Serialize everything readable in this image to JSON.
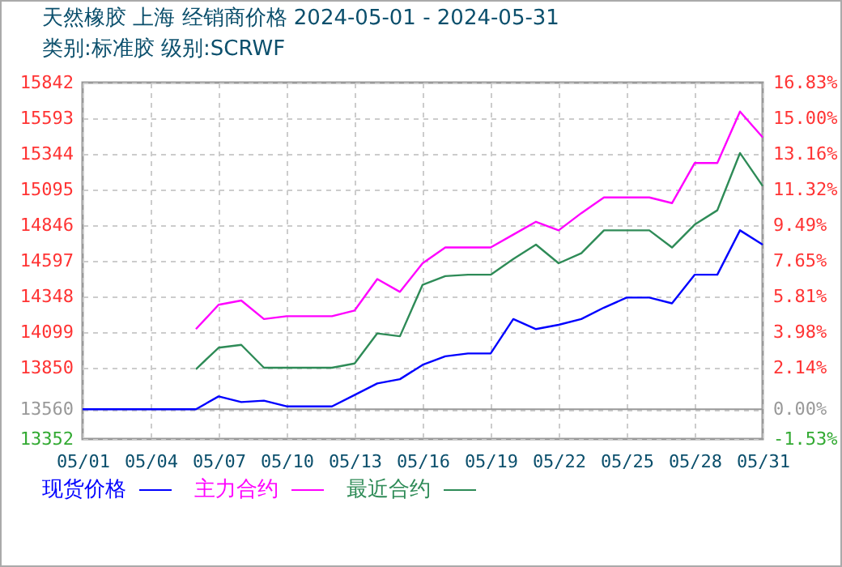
{
  "chart_data": {
    "type": "line",
    "title": "天然橡胶 上海 经销商价格 2024-05-01 - 2024-05-31",
    "subtitle": "类别:标准胶 级别:SCRWF",
    "x": [
      "2024-05-01",
      "2024-05-02",
      "2024-05-03",
      "2024-05-04",
      "2024-05-05",
      "2024-05-06",
      "2024-05-07",
      "2024-05-08",
      "2024-05-09",
      "2024-05-10",
      "2024-05-11",
      "2024-05-12",
      "2024-05-13",
      "2024-05-14",
      "2024-05-15",
      "2024-05-16",
      "2024-05-17",
      "2024-05-18",
      "2024-05-19",
      "2024-05-20",
      "2024-05-21",
      "2024-05-22",
      "2024-05-23",
      "2024-05-24",
      "2024-05-25",
      "2024-05-26",
      "2024-05-27",
      "2024-05-28",
      "2024-05-29",
      "2024-05-30",
      "2024-05-31"
    ],
    "series": [
      {
        "name": "现货价格",
        "color": "#0000ff",
        "values": [
          13560,
          13560,
          13560,
          13560,
          13560,
          13560,
          13650,
          13610,
          13620,
          13580,
          13580,
          13580,
          13660,
          13740,
          13770,
          13870,
          13930,
          13950,
          13950,
          14190,
          14120,
          14150,
          14190,
          14270,
          14340,
          14340,
          14300,
          14500,
          14500,
          14810,
          14710
        ]
      },
      {
        "name": "主力合约",
        "color": "#ff00ff",
        "values": [
          null,
          null,
          null,
          null,
          null,
          14120,
          14290,
          14320,
          14190,
          14210,
          14210,
          14210,
          14250,
          14470,
          14380,
          14580,
          14690,
          14690,
          14690,
          14780,
          14870,
          14810,
          14930,
          15040,
          15040,
          15040,
          15000,
          15280,
          15280,
          15640,
          15460
        ]
      },
      {
        "name": "最近合约",
        "color": "#2e8b57",
        "values": [
          null,
          null,
          null,
          null,
          null,
          13840,
          13990,
          14010,
          13850,
          13850,
          13850,
          13850,
          13880,
          14090,
          14070,
          14430,
          14490,
          14500,
          14500,
          14610,
          14710,
          14580,
          14650,
          14810,
          14810,
          14810,
          14690,
          14850,
          14950,
          15350,
          15120
        ]
      }
    ],
    "xlim": [
      "2024-05-01",
      "2024-05-31"
    ],
    "xticks": [
      {
        "value": "2024-05-01",
        "label": "05/01"
      },
      {
        "value": "2024-05-04",
        "label": "05/04"
      },
      {
        "value": "2024-05-07",
        "label": "05/07"
      },
      {
        "value": "2024-05-10",
        "label": "05/10"
      },
      {
        "value": "2024-05-13",
        "label": "05/13"
      },
      {
        "value": "2024-05-16",
        "label": "05/16"
      },
      {
        "value": "2024-05-19",
        "label": "05/19"
      },
      {
        "value": "2024-05-22",
        "label": "05/22"
      },
      {
        "value": "2024-05-25",
        "label": "05/25"
      },
      {
        "value": "2024-05-28",
        "label": "05/28"
      },
      {
        "value": "2024-05-31",
        "label": "05/31"
      }
    ],
    "ylim": [
      13352,
      15842
    ],
    "yticks": [
      13352,
      13560,
      13850,
      14099,
      14348,
      14597,
      14846,
      15095,
      15344,
      15593,
      15842
    ],
    "y2lim": [
      -1.53,
      16.83
    ],
    "y2ticks": [
      {
        "value": -1.53,
        "label": "-1.53%"
      },
      {
        "value": 0,
        "label": "0.00%"
      },
      {
        "value": 2.14,
        "label": "2.14%"
      },
      {
        "value": 3.98,
        "label": "3.98%"
      },
      {
        "value": 5.81,
        "label": "5.81%"
      },
      {
        "value": 7.65,
        "label": "7.65%"
      },
      {
        "value": 9.49,
        "label": "9.49%"
      },
      {
        "value": 11.32,
        "label": "11.32%"
      },
      {
        "value": 13.16,
        "label": "13.16%"
      },
      {
        "value": 15.0,
        "label": "15.00%"
      },
      {
        "value": 16.83,
        "label": "16.83%"
      }
    ],
    "ref_lines": [
      {
        "axis": "y2",
        "value": 0,
        "color": "#999999"
      }
    ],
    "grid": true,
    "legend": "bottom",
    "line_style": "solid",
    "marker": "none"
  }
}
